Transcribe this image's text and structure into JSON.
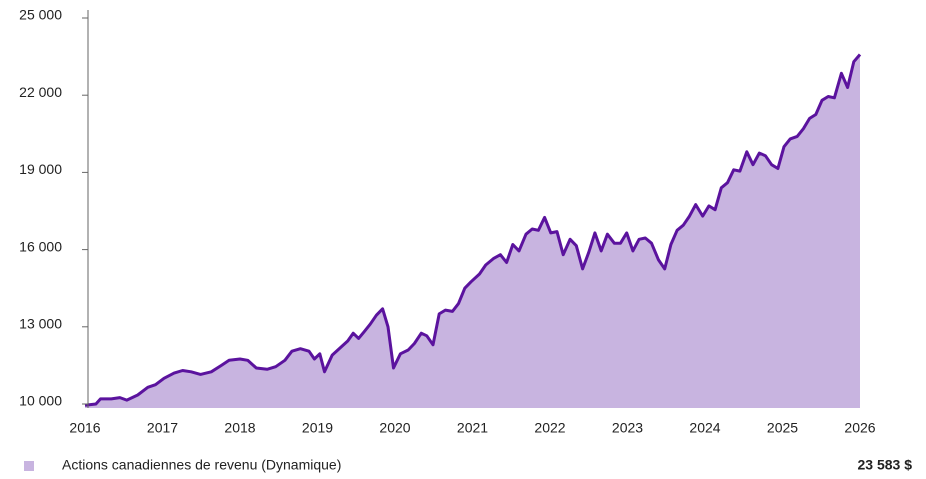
{
  "chart_data": {
    "type": "area",
    "xlim": [
      2016,
      2026
    ],
    "xticks": [
      2016,
      2017,
      2018,
      2019,
      2020,
      2021,
      2022,
      2023,
      2024,
      2025,
      2026
    ],
    "ylim": [
      10000,
      25000
    ],
    "yticks": [
      {
        "value": 10000,
        "label": "10 000"
      },
      {
        "value": 13000,
        "label": "13 000"
      },
      {
        "value": 16000,
        "label": "16 000"
      },
      {
        "value": 19000,
        "label": "19 000"
      },
      {
        "value": 22000,
        "label": "22 000"
      },
      {
        "value": 25000,
        "label": "25 000"
      }
    ],
    "grid": false,
    "x": [
      2016,
      2016.14,
      2016.2,
      2016.34,
      2016.45,
      2016.54,
      2016.68,
      2016.81,
      2016.91,
      2017.02,
      2017.15,
      2017.26,
      2017.37,
      2017.49,
      2017.63,
      2017.76,
      2017.86,
      2018.0,
      2018.1,
      2018.21,
      2018.35,
      2018.46,
      2018.58,
      2018.67,
      2018.78,
      2018.89,
      2018.96,
      2019.03,
      2019.09,
      2019.19,
      2019.3,
      2019.39,
      2019.46,
      2019.53,
      2019.6,
      2019.68,
      2019.76,
      2019.84,
      2019.91,
      2019.98,
      2020.07,
      2020.17,
      2020.25,
      2020.34,
      2020.41,
      2020.49,
      2020.57,
      2020.65,
      2020.74,
      2020.82,
      2020.9,
      2020.98,
      2021.09,
      2021.17,
      2021.27,
      2021.36,
      2021.44,
      2021.52,
      2021.6,
      2021.69,
      2021.77,
      2021.85,
      2021.93,
      2022.01,
      2022.09,
      2022.17,
      2022.26,
      2022.34,
      2022.42,
      2022.5,
      2022.58,
      2022.66,
      2022.74,
      2022.83,
      2022.91,
      2022.99,
      2023.07,
      2023.15,
      2023.23,
      2023.31,
      2023.4,
      2023.48,
      2023.56,
      2023.64,
      2023.72,
      2023.8,
      2023.88,
      2023.97,
      2024.05,
      2024.13,
      2024.21,
      2024.29,
      2024.37,
      2024.45,
      2024.54,
      2024.62,
      2024.7,
      2024.78,
      2024.86,
      2024.94,
      2025.02,
      2025.1,
      2025.19,
      2025.27,
      2025.35,
      2025.43,
      2025.51,
      2025.59,
      2025.67,
      2025.76,
      2025.84,
      2025.92,
      2026
    ],
    "series": [
      {
        "name": "Actions canadiennes de revenu (Dynamique)",
        "color": "#5b139e",
        "fill": "#c8b4e0",
        "values": [
          9950,
          10000,
          10200,
          10200,
          10250,
          10150,
          10350,
          10650,
          10750,
          11000,
          11200,
          11300,
          11250,
          11150,
          11250,
          11500,
          11700,
          11750,
          11700,
          11400,
          11350,
          11450,
          11700,
          12050,
          12150,
          12050,
          11750,
          11950,
          11250,
          11900,
          12200,
          12450,
          12750,
          12550,
          12800,
          13100,
          13450,
          13700,
          13000,
          11400,
          11950,
          12100,
          12350,
          12750,
          12650,
          12300,
          13500,
          13650,
          13600,
          13900,
          14500,
          14750,
          15050,
          15400,
          15650,
          15800,
          15500,
          16200,
          15950,
          16600,
          16800,
          16750,
          17250,
          16650,
          16700,
          15800,
          16400,
          16150,
          15250,
          15900,
          16650,
          15950,
          16600,
          16250,
          16250,
          16650,
          15950,
          16400,
          16450,
          16250,
          15600,
          15250,
          16200,
          16750,
          16950,
          17300,
          17750,
          17300,
          17700,
          17550,
          18400,
          18600,
          19100,
          19050,
          19800,
          19300,
          19750,
          19650,
          19300,
          19150,
          20000,
          20300,
          20400,
          20700,
          21100,
          21250,
          21800,
          21950,
          21900,
          22850,
          22300,
          23300,
          23583
        ]
      }
    ],
    "final_value_label": "23 583 $"
  }
}
